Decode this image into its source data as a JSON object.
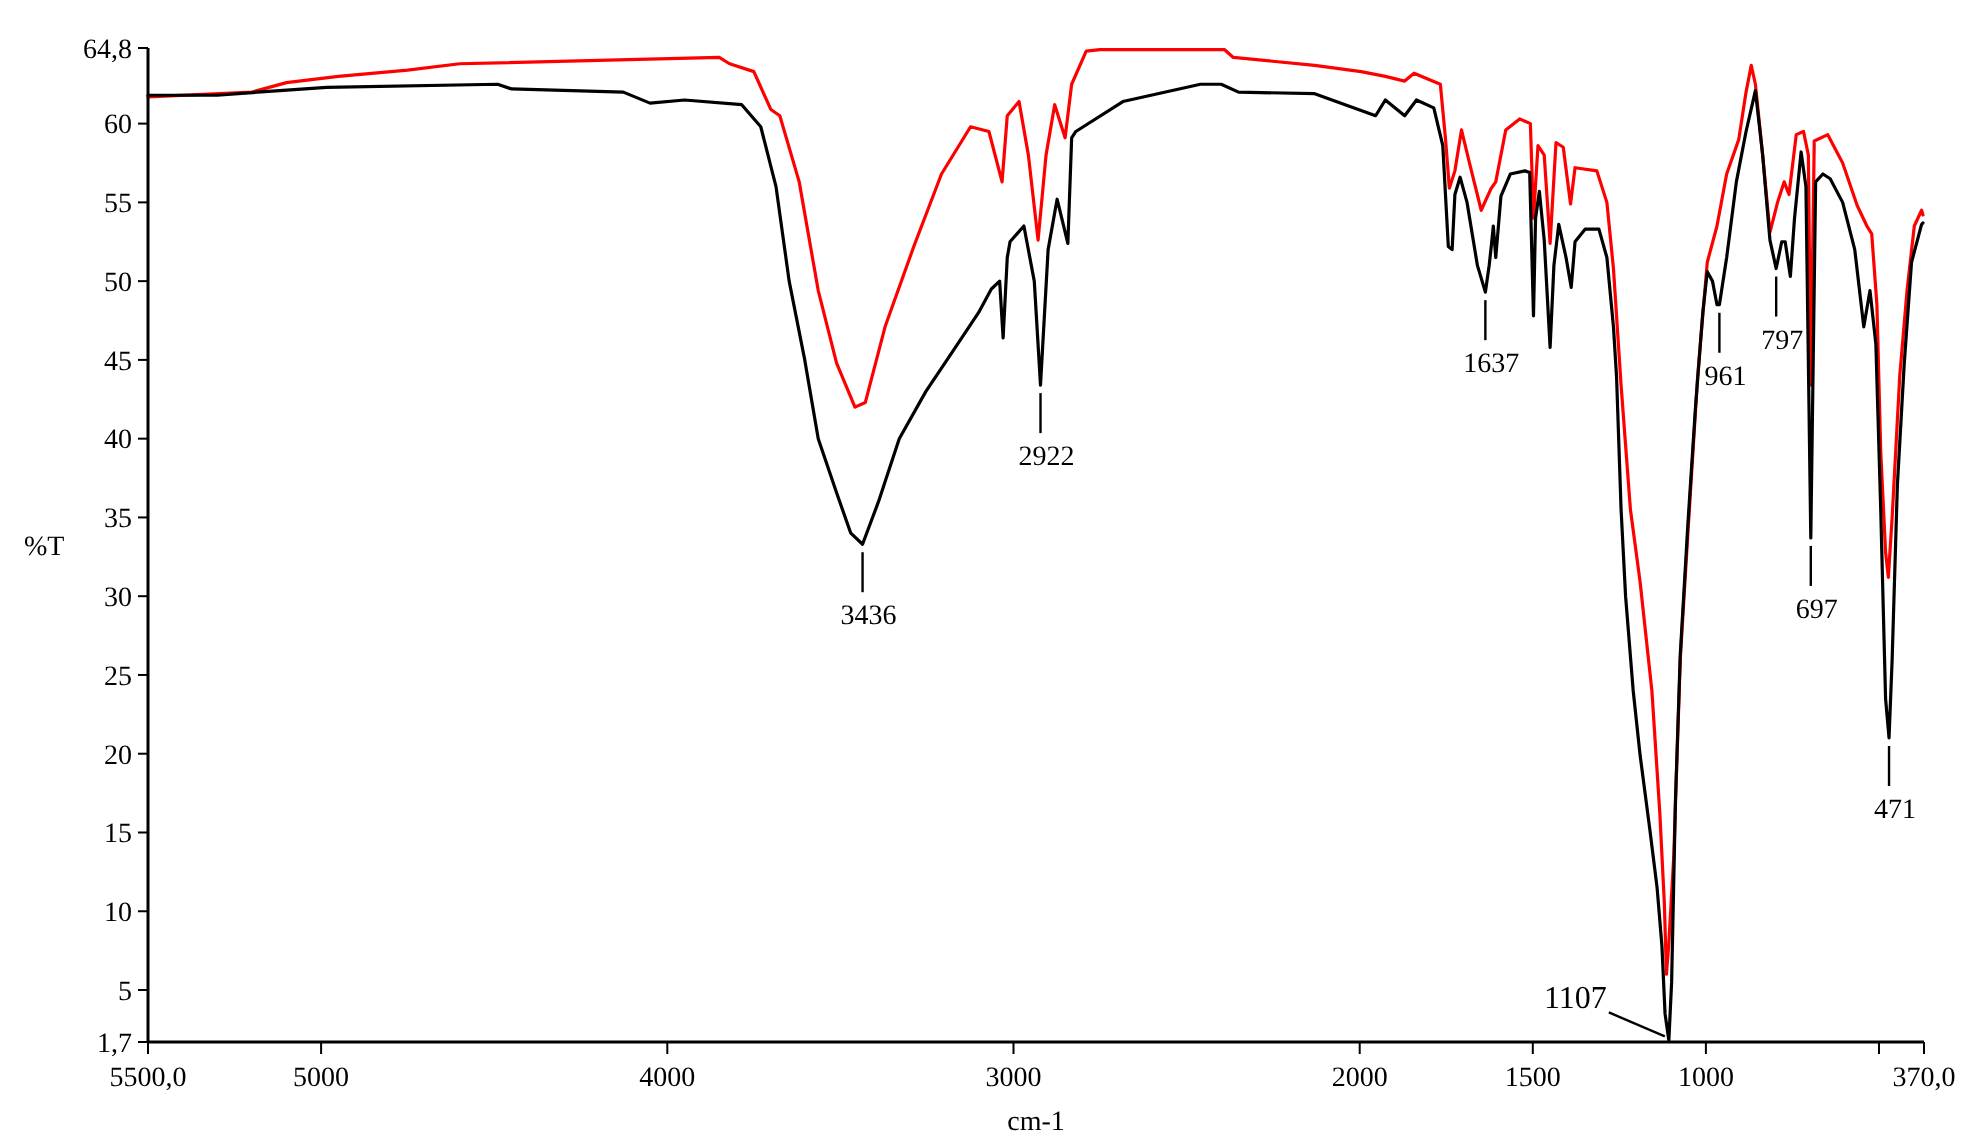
{
  "chart_data": {
    "type": "line",
    "xlabel": "cm-1",
    "ylabel": "%T",
    "xlim": [
      5500,
      370
    ],
    "ylim": [
      1.7,
      64.8
    ],
    "xticks": [
      {
        "value": 5500,
        "label": "5500,0"
      },
      5000,
      4000,
      3000,
      2000,
      1500,
      1000,
      {
        "value": 500,
        "label": null
      },
      {
        "value": 370,
        "label": "370,0"
      }
    ],
    "yticks": [
      {
        "value": 1.7,
        "label": "1,7"
      },
      5,
      10,
      15,
      20,
      25,
      30,
      35,
      40,
      45,
      50,
      55,
      60,
      {
        "value": 64.8,
        "label": "64,8"
      }
    ],
    "grid": false,
    "marker": "none",
    "line_style": "solid",
    "series": [
      {
        "color": "#ff0000",
        "x": [
          5500,
          5200,
          5100,
          4950,
          4750,
          4600,
          3850,
          3820,
          3750,
          3701,
          3675,
          3619,
          3564,
          3511,
          3458,
          3428,
          3371,
          3288,
          3208,
          3124,
          3071,
          3033,
          3018,
          2984,
          2957,
          2929,
          2906,
          2881,
          2851,
          2832,
          2790,
          2750,
          2625,
          2391,
          2365,
          2130,
          1996,
          1926,
          1870,
          1843,
          1800,
          1767,
          1752,
          1741,
          1725,
          1706,
          1683,
          1649,
          1620,
          1607,
          1578,
          1538,
          1507,
          1498,
          1485,
          1467,
          1450,
          1433,
          1412,
          1391,
          1378,
          1315,
          1286,
          1267,
          1245,
          1218,
          1190,
          1156,
          1133,
          1120,
          1114,
          1107,
          1093,
          1074,
          1052,
          1024,
          996,
          968,
          940,
          905,
          884,
          869,
          857,
          836,
          815,
          793,
          774,
          760,
          739,
          718,
          704,
          697,
          687,
          648,
          605,
          563,
          535,
          521,
          506,
          495,
          481,
          473,
          462,
          440,
          419,
          398,
          377,
          373
        ],
        "values": [
          61.7,
          62.0,
          62.6,
          63.0,
          63.4,
          63.8,
          64.2,
          63.8,
          63.3,
          60.9,
          60.5,
          56.3,
          49.4,
          44.8,
          42.0,
          42.3,
          47.1,
          52.2,
          56.8,
          59.8,
          59.5,
          56.3,
          60.5,
          61.4,
          58.0,
          52.6,
          58.0,
          61.2,
          59.1,
          62.5,
          64.6,
          64.7,
          64.7,
          64.7,
          64.2,
          63.7,
          63.3,
          63.0,
          62.7,
          63.2,
          62.8,
          62.5,
          59.0,
          55.9,
          57.0,
          59.6,
          57.5,
          54.5,
          55.9,
          56.3,
          59.6,
          60.3,
          60.0,
          54.0,
          58.6,
          58.0,
          52.4,
          58.8,
          58.5,
          54.9,
          57.2,
          57.0,
          55.0,
          50.8,
          43.4,
          35.5,
          30.9,
          24.0,
          16.2,
          10.5,
          6.0,
          8.0,
          13.4,
          26.0,
          34.0,
          43.9,
          51.2,
          53.5,
          56.8,
          59.0,
          62.0,
          63.7,
          62.5,
          58.0,
          53.1,
          55.0,
          56.3,
          55.5,
          59.3,
          59.5,
          58.0,
          43.4,
          58.9,
          59.3,
          57.5,
          54.8,
          53.5,
          53.0,
          48.5,
          39.2,
          32.8,
          31.2,
          35.0,
          44.0,
          49.4,
          53.5,
          54.5,
          54.2
        ]
      },
      {
        "color": "#000000",
        "x": [
          5500,
          5300,
          5120,
          4984,
          4490,
          4450,
          4127,
          4050,
          3950,
          3785,
          3730,
          3686,
          3648,
          3603,
          3564,
          3510,
          3470,
          3436,
          3390,
          3330,
          3253,
          3177,
          3101,
          3064,
          3040,
          3030,
          3018,
          3010,
          2990,
          2970,
          2940,
          2922,
          2900,
          2874,
          2843,
          2832,
          2820,
          2684,
          2460,
          2400,
          2350,
          2130,
          1954,
          1926,
          1870,
          1836,
          1786,
          1760,
          1744,
          1733,
          1725,
          1710,
          1690,
          1660,
          1637,
          1626,
          1620,
          1614,
          1607,
          1592,
          1565,
          1523,
          1509,
          1498,
          1492,
          1481,
          1467,
          1450,
          1439,
          1425,
          1404,
          1389,
          1378,
          1349,
          1309,
          1286,
          1267,
          1258,
          1245,
          1232,
          1210,
          1190,
          1162,
          1141,
          1127,
          1118,
          1107,
          1099,
          1088,
          1074,
          1052,
          1030,
          1009,
          996,
          981,
          968,
          961,
          940,
          912,
          884,
          857,
          836,
          815,
          797,
          781,
          771,
          756,
          744,
          725,
          711,
          697,
          683,
          662,
          641,
          605,
          570,
          544,
          526,
          509,
          495,
          481,
          471,
          462,
          447,
          427,
          406,
          377,
          373
        ],
        "values": [
          61.8,
          61.8,
          62.1,
          62.3,
          62.5,
          62.2,
          62.0,
          61.3,
          61.5,
          61.2,
          59.8,
          56.0,
          50.0,
          45.0,
          40.0,
          36.5,
          34.0,
          33.3,
          36.0,
          40.0,
          43.0,
          45.5,
          48.0,
          49.5,
          50.0,
          46.4,
          51.5,
          52.5,
          53.0,
          53.5,
          50.0,
          43.4,
          52.0,
          55.2,
          52.4,
          59.1,
          59.5,
          61.4,
          62.5,
          62.5,
          62.0,
          61.9,
          60.5,
          61.5,
          60.5,
          61.5,
          61.0,
          58.6,
          52.2,
          52.0,
          55.5,
          56.6,
          55.0,
          51.0,
          49.3,
          51.0,
          52.2,
          53.5,
          51.5,
          55.4,
          56.8,
          57.0,
          56.9,
          47.8,
          54.0,
          55.7,
          52.6,
          45.8,
          51.0,
          53.6,
          51.5,
          49.6,
          52.5,
          53.3,
          53.3,
          51.5,
          47.1,
          43.9,
          35.5,
          30.0,
          24.0,
          19.9,
          15.2,
          11.5,
          7.8,
          3.5,
          1.8,
          5.5,
          17.0,
          26.3,
          34.6,
          42.0,
          48.0,
          50.6,
          50.0,
          48.5,
          48.5,
          51.5,
          56.3,
          59.5,
          62.1,
          58.0,
          52.6,
          50.8,
          52.5,
          52.5,
          50.3,
          54.0,
          58.2,
          56.0,
          33.7,
          56.3,
          56.8,
          56.5,
          55.0,
          52.0,
          47.1,
          49.4,
          46.0,
          35.5,
          23.5,
          21.0,
          26.0,
          37.0,
          44.8,
          51.2,
          53.6,
          53.7
        ]
      }
    ],
    "annotations": [
      {
        "text": "3436",
        "x": 3436,
        "y": 33.3
      },
      {
        "text": "2922",
        "x": 2922,
        "y": 43.4
      },
      {
        "text": "1637",
        "x": 1637,
        "y": 49.3
      },
      {
        "text": "1107",
        "x": 1107,
        "y": 1.8
      },
      {
        "text": "961",
        "x": 961,
        "y": 48.5
      },
      {
        "text": "797",
        "x": 797,
        "y": 50.8
      },
      {
        "text": "697",
        "x": 697,
        "y": 33.7
      },
      {
        "text": "471",
        "x": 471,
        "y": 21.0
      }
    ]
  }
}
